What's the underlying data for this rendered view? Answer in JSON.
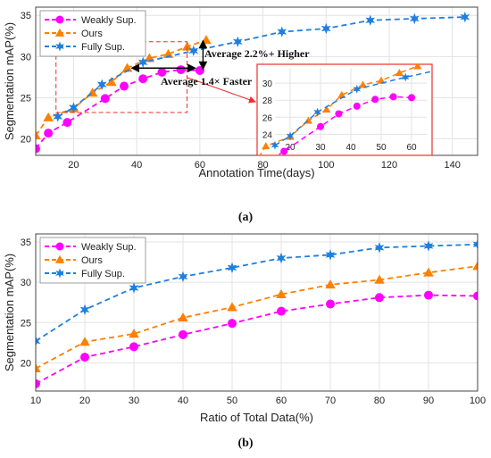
{
  "chart_data": [
    {
      "id": "a",
      "type": "line",
      "caption": "(a)",
      "xlabel": "Annotation Time(days)",
      "ylabel": "Segmentation mAP(%)",
      "xlim": [
        8,
        148
      ],
      "ylim": [
        18,
        36
      ],
      "xticks": [
        20,
        40,
        60,
        80,
        100,
        120,
        140
      ],
      "yticks": [
        20,
        25,
        30,
        35
      ],
      "grid": true,
      "legend": "top-left",
      "series": [
        {
          "name": "Weakly Sup.",
          "color": "#ff00ff",
          "marker": "circle",
          "x": [
            8,
            12,
            18,
            30,
            36,
            42,
            48,
            54,
            60
          ],
          "y": [
            18.8,
            20.7,
            22.0,
            24.9,
            26.4,
            27.3,
            28.1,
            28.4,
            28.3
          ]
        },
        {
          "name": "Ours",
          "color": "#ff8000",
          "marker": "triangle",
          "x": [
            8,
            12,
            20,
            26,
            32,
            37,
            44,
            50,
            56,
            62
          ],
          "y": [
            20.4,
            22.6,
            23.7,
            25.6,
            26.9,
            28.6,
            29.8,
            30.3,
            31.2,
            32.0
          ]
        },
        {
          "name": "Fully Sup.",
          "color": "#1e7fe0",
          "marker": "star",
          "x": [
            15,
            20,
            29,
            42,
            58,
            72,
            86,
            100,
            114,
            128,
            144
          ],
          "y": [
            22.7,
            23.8,
            26.6,
            29.3,
            30.7,
            31.8,
            33.0,
            33.4,
            34.4,
            34.6,
            34.8
          ]
        }
      ],
      "annotations": [
        "Average 2.2%+ Higher",
        "Average 1.4× Faster"
      ],
      "inset": {
        "xlim": [
          15,
          65
        ],
        "ylim": [
          23.2,
          31.8
        ],
        "xticks": [
          20,
          30,
          40,
          50,
          60
        ],
        "yticks": [
          24,
          26,
          28,
          30
        ]
      }
    },
    {
      "id": "b",
      "type": "line",
      "caption": "(b)",
      "xlabel": "Ratio of Total Data(%)",
      "ylabel": "Segmentation mAP(%)",
      "xlim": [
        10,
        100
      ],
      "ylim": [
        16.5,
        36
      ],
      "xticks": [
        10,
        20,
        30,
        40,
        50,
        60,
        70,
        80,
        90,
        100
      ],
      "yticks": [
        20,
        25,
        30,
        35
      ],
      "grid": true,
      "legend": "top-left",
      "categories": [
        10,
        20,
        30,
        40,
        50,
        60,
        70,
        80,
        90,
        100
      ],
      "series": [
        {
          "name": "Weakly Sup.",
          "color": "#ff00ff",
          "marker": "circle",
          "values": [
            17.4,
            20.7,
            22.0,
            23.5,
            24.9,
            26.4,
            27.3,
            28.1,
            28.4,
            28.3
          ]
        },
        {
          "name": "Ours",
          "color": "#ff8000",
          "marker": "triangle",
          "values": [
            19.3,
            22.6,
            23.6,
            25.6,
            26.9,
            28.5,
            29.7,
            30.3,
            31.2,
            32.0
          ]
        },
        {
          "name": "Fully Sup.",
          "color": "#1e7fe0",
          "marker": "star",
          "values": [
            22.7,
            26.6,
            29.3,
            30.7,
            31.8,
            33.0,
            33.4,
            34.3,
            34.5,
            34.7
          ]
        }
      ]
    }
  ]
}
